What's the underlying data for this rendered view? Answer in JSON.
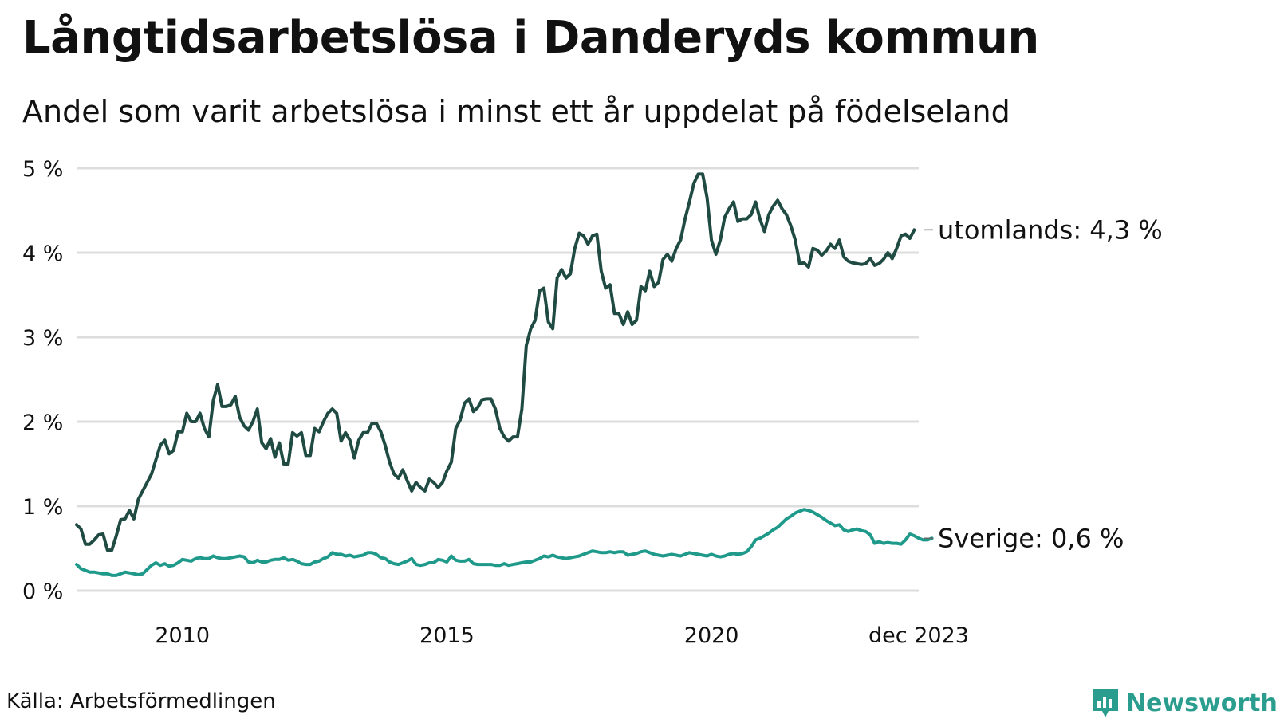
{
  "title": "Långtidsarbetslösa i Danderyds kommun",
  "subtitle": "Andel som varit arbetslösa i minst ett år uppdelat på födelseland",
  "source": "Källa: Arbetsförmedlingen",
  "brand": "Newsworthy",
  "colors": {
    "utomlands": "#1f4b43",
    "sverige": "#1f9a8a",
    "grid": "#dddddd",
    "brand": "#2a9d8f"
  },
  "chart_data": {
    "type": "line",
    "title": "Långtidsarbetslösa i Danderyds kommun",
    "xlabel": "",
    "ylabel": "",
    "ylim": [
      0,
      5
    ],
    "xlim": [
      2008,
      2023.917
    ],
    "x_start": 2008,
    "x_step_months": 1,
    "y_ticks": [
      0,
      1,
      2,
      3,
      4,
      5
    ],
    "y_tick_labels": [
      "0 %",
      "1 %",
      "2 %",
      "3 %",
      "4 %",
      "5 %"
    ],
    "x_ticks": [
      2010,
      2015,
      2020,
      2023.917
    ],
    "x_tick_labels": [
      "2010",
      "2015",
      "2020",
      "dec 2023"
    ],
    "grid": true,
    "series": [
      {
        "name": "utomlands",
        "end_label": "utomlands: 4,3 %",
        "values": [
          0.78,
          0.73,
          0.55,
          0.55,
          0.6,
          0.66,
          0.67,
          0.48,
          0.48,
          0.65,
          0.84,
          0.85,
          0.95,
          0.85,
          1.08,
          1.18,
          1.28,
          1.38,
          1.55,
          1.72,
          1.78,
          1.62,
          1.66,
          1.88,
          1.88,
          2.1,
          2.0,
          2.0,
          2.1,
          1.92,
          1.82,
          2.25,
          2.44,
          2.18,
          2.18,
          2.2,
          2.3,
          2.05,
          1.95,
          1.9,
          2.0,
          2.15,
          1.75,
          1.68,
          1.8,
          1.58,
          1.75,
          1.5,
          1.5,
          1.87,
          1.83,
          1.87,
          1.6,
          1.6,
          1.92,
          1.88,
          2.0,
          2.1,
          2.15,
          2.1,
          1.77,
          1.87,
          1.78,
          1.57,
          1.78,
          1.87,
          1.87,
          1.98,
          1.98,
          1.88,
          1.72,
          1.52,
          1.38,
          1.33,
          1.43,
          1.3,
          1.18,
          1.28,
          1.22,
          1.18,
          1.32,
          1.28,
          1.22,
          1.28,
          1.42,
          1.52,
          1.92,
          2.02,
          2.22,
          2.27,
          2.12,
          2.17,
          2.26,
          2.27,
          2.27,
          2.15,
          1.92,
          1.82,
          1.77,
          1.82,
          1.82,
          2.15,
          2.9,
          3.1,
          3.2,
          3.55,
          3.58,
          3.18,
          3.1,
          3.7,
          3.8,
          3.7,
          3.75,
          4.05,
          4.23,
          4.2,
          4.1,
          4.2,
          4.22,
          3.78,
          3.58,
          3.62,
          3.28,
          3.28,
          3.15,
          3.3,
          3.15,
          3.2,
          3.6,
          3.55,
          3.78,
          3.6,
          3.65,
          3.92,
          3.98,
          3.9,
          4.05,
          4.15,
          4.4,
          4.6,
          4.82,
          4.93,
          4.93,
          4.65,
          4.15,
          3.98,
          4.15,
          4.42,
          4.52,
          4.6,
          4.37,
          4.4,
          4.4,
          4.45,
          4.6,
          4.4,
          4.25,
          4.45,
          4.55,
          4.62,
          4.52,
          4.45,
          4.32,
          4.15,
          3.87,
          3.88,
          3.83,
          4.05,
          4.03,
          3.97,
          4.02,
          4.1,
          4.05,
          4.15,
          3.95,
          3.9,
          3.88,
          3.87,
          3.86,
          3.87,
          3.93,
          3.85,
          3.87,
          3.92,
          4.0,
          3.93,
          4.05,
          4.2,
          4.22,
          4.17,
          4.27
        ]
      },
      {
        "name": "Sverige",
        "end_label": "Sverige: 0,6 %",
        "values": [
          0.31,
          0.26,
          0.24,
          0.22,
          0.22,
          0.21,
          0.2,
          0.2,
          0.18,
          0.18,
          0.2,
          0.22,
          0.21,
          0.2,
          0.19,
          0.2,
          0.25,
          0.3,
          0.33,
          0.3,
          0.32,
          0.29,
          0.3,
          0.33,
          0.37,
          0.36,
          0.35,
          0.38,
          0.39,
          0.38,
          0.38,
          0.41,
          0.39,
          0.38,
          0.38,
          0.39,
          0.4,
          0.41,
          0.4,
          0.34,
          0.33,
          0.36,
          0.34,
          0.34,
          0.36,
          0.37,
          0.37,
          0.39,
          0.36,
          0.37,
          0.35,
          0.32,
          0.31,
          0.31,
          0.34,
          0.35,
          0.38,
          0.4,
          0.45,
          0.43,
          0.43,
          0.41,
          0.42,
          0.4,
          0.41,
          0.42,
          0.45,
          0.45,
          0.43,
          0.39,
          0.38,
          0.34,
          0.32,
          0.31,
          0.33,
          0.35,
          0.38,
          0.31,
          0.3,
          0.31,
          0.33,
          0.33,
          0.37,
          0.36,
          0.34,
          0.41,
          0.36,
          0.35,
          0.35,
          0.37,
          0.32,
          0.31,
          0.31,
          0.31,
          0.31,
          0.3,
          0.3,
          0.32,
          0.3,
          0.31,
          0.32,
          0.33,
          0.34,
          0.34,
          0.36,
          0.38,
          0.41,
          0.4,
          0.42,
          0.4,
          0.39,
          0.38,
          0.39,
          0.4,
          0.41,
          0.43,
          0.45,
          0.47,
          0.46,
          0.45,
          0.45,
          0.46,
          0.45,
          0.46,
          0.46,
          0.42,
          0.43,
          0.44,
          0.46,
          0.47,
          0.45,
          0.43,
          0.42,
          0.41,
          0.42,
          0.43,
          0.42,
          0.41,
          0.43,
          0.45,
          0.44,
          0.43,
          0.42,
          0.41,
          0.43,
          0.41,
          0.4,
          0.41,
          0.43,
          0.44,
          0.43,
          0.44,
          0.46,
          0.52,
          0.6,
          0.62,
          0.65,
          0.68,
          0.72,
          0.75,
          0.8,
          0.85,
          0.88,
          0.92,
          0.94,
          0.96,
          0.95,
          0.93,
          0.9,
          0.87,
          0.83,
          0.8,
          0.77,
          0.78,
          0.72,
          0.7,
          0.72,
          0.73,
          0.71,
          0.7,
          0.66,
          0.56,
          0.58,
          0.56,
          0.57,
          0.56,
          0.56,
          0.55,
          0.6,
          0.67,
          0.65,
          0.62,
          0.6,
          0.6,
          0.62
        ]
      }
    ]
  }
}
